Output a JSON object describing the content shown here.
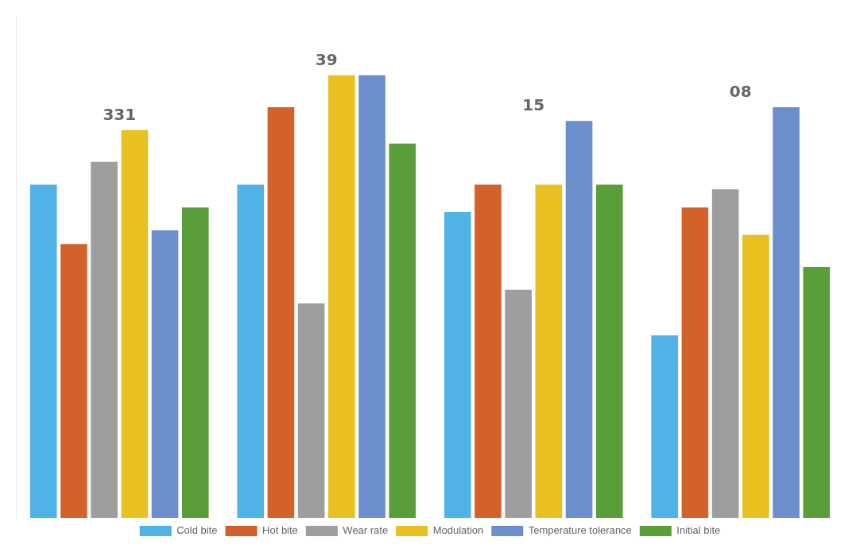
{
  "chart_data": {
    "type": "bar",
    "categories": [
      "331",
      "39",
      "15",
      "08"
    ],
    "series": [
      {
        "name": "Cold bite",
        "color": "#4FB3E8",
        "values": [
          73,
          73,
          67,
          40
        ]
      },
      {
        "name": "Hot bite",
        "color": "#D2622A",
        "values": [
          60,
          90,
          73,
          68
        ]
      },
      {
        "name": "Wear rate",
        "color": "#9E9E9E",
        "values": [
          78,
          47,
          50,
          72
        ]
      },
      {
        "name": "Modulation",
        "color": "#E8C020",
        "values": [
          85,
          97,
          73,
          62
        ]
      },
      {
        "name": "Temperature tolerance",
        "color": "#6B8FCC",
        "values": [
          63,
          97,
          87,
          90
        ]
      },
      {
        "name": "Initial bite",
        "color": "#5A9E3A",
        "values": [
          68,
          82,
          73,
          55
        ]
      }
    ],
    "ylim": [
      0,
      110
    ],
    "grid": false,
    "legend": "bottom",
    "tick_labels": false
  }
}
